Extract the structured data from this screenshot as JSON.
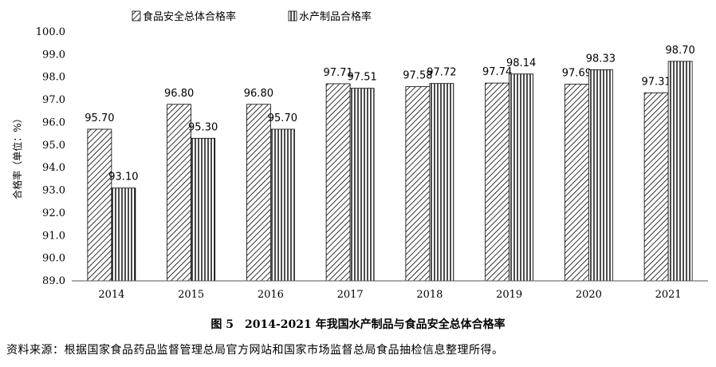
{
  "chart_data": {
    "type": "bar",
    "categories": [
      "2014",
      "2015",
      "2016",
      "2017",
      "2018",
      "2019",
      "2020",
      "2021"
    ],
    "series": [
      {
        "name": "食品安全总体合格率",
        "values": [
          95.7,
          96.8,
          96.8,
          97.71,
          97.58,
          97.74,
          97.69,
          97.31
        ],
        "labels": [
          "95.70",
          "96.80",
          "96.80",
          "97.71",
          "97.58",
          "97.74",
          "97.69",
          "97.31"
        ],
        "pattern": "diagonal-hatch"
      },
      {
        "name": "水产制品合格率",
        "values": [
          93.1,
          95.3,
          95.7,
          97.51,
          97.72,
          98.14,
          98.33,
          98.7
        ],
        "labels": [
          "93.10",
          "95.30",
          "95.70",
          "97.51",
          "97.72",
          "98.14",
          "98.33",
          "98.70"
        ],
        "pattern": "vertical-stripes"
      }
    ],
    "ylabel": "合格率（单位：%）",
    "ylim": [
      89.0,
      100.0
    ],
    "yticks": [
      "89.0",
      "90.0",
      "91.0",
      "92.0",
      "93.0",
      "94.0",
      "95.0",
      "96.0",
      "97.0",
      "98.0",
      "99.0",
      "100.0"
    ],
    "legend_position": "top-left",
    "grid": false
  },
  "caption": "图 5　2014-2021 年我国水产制品与食品安全总体合格率",
  "source": "资料来源：根据国家食品药品监督管理总局官方网站和国家市场监督总局食品抽检信息整理所得。"
}
